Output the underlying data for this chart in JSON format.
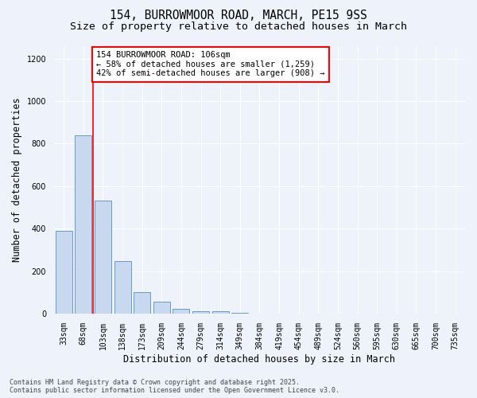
{
  "title_line1": "154, BURROWMOOR ROAD, MARCH, PE15 9SS",
  "title_line2": "Size of property relative to detached houses in March",
  "xlabel": "Distribution of detached houses by size in March",
  "ylabel": "Number of detached properties",
  "categories": [
    "33sqm",
    "68sqm",
    "103sqm",
    "138sqm",
    "173sqm",
    "209sqm",
    "244sqm",
    "279sqm",
    "314sqm",
    "349sqm",
    "384sqm",
    "419sqm",
    "454sqm",
    "489sqm",
    "524sqm",
    "560sqm",
    "595sqm",
    "630sqm",
    "665sqm",
    "700sqm",
    "735sqm"
  ],
  "values": [
    390,
    840,
    530,
    248,
    100,
    57,
    22,
    10,
    10,
    5,
    0,
    0,
    0,
    0,
    0,
    0,
    0,
    0,
    0,
    0,
    0
  ],
  "bar_color": "#c8d8ee",
  "bar_edge_color": "#6699cc",
  "vline_color": "red",
  "annotation_text": "154 BURROWMOOR ROAD: 106sqm\n← 58% of detached houses are smaller (1,259)\n42% of semi-detached houses are larger (908) →",
  "annotation_box_color": "white",
  "annotation_box_edge": "red",
  "ylim": [
    0,
    1260
  ],
  "yticks": [
    0,
    200,
    400,
    600,
    800,
    1000,
    1200
  ],
  "bg_color": "#eef2fb",
  "grid_color": "white",
  "footer": "Contains HM Land Registry data © Crown copyright and database right 2025.\nContains public sector information licensed under the Open Government Licence v3.0.",
  "title_fontsize": 10.5,
  "subtitle_fontsize": 9.5,
  "axis_label_fontsize": 8.5,
  "tick_fontsize": 7,
  "annotation_fontsize": 7.5,
  "footer_fontsize": 6,
  "vline_pos": 2.0
}
